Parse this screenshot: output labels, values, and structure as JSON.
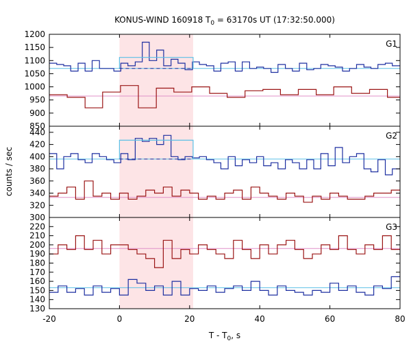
{
  "chart_data": {
    "type": "line",
    "title": "KONUS-WIND 160918 T",
    "title_sub": "0",
    "title_rest": " = 63170s UT (17:32:50.000)",
    "xlabel": "T - T",
    "xlabel_sub": "0",
    "xlabel_rest": ", s",
    "ylabel": "counts / sec",
    "xlim": [
      -20,
      80
    ],
    "xticks": [
      -20,
      0,
      20,
      40,
      60,
      80
    ],
    "highlight_interval": [
      0,
      21
    ],
    "highlight_color": "#fde4e6",
    "panels": [
      {
        "name": "G1",
        "ylim": [
          850,
          1200
        ],
        "yticks": [
          850,
          900,
          950,
          1000,
          1050,
          1100,
          1150,
          1200
        ],
        "series": [
          {
            "color": "#1c2ea0",
            "edges": [
              -20,
              -17.9,
              -15.9,
              -13.9,
              -11.8,
              -9.8,
              -7.8,
              -5.7,
              -3.7,
              -1.6,
              0.4,
              2.4,
              4.5,
              6.5,
              8.5,
              10.6,
              12.6,
              14.7,
              16.7,
              18.7,
              20.8,
              22.8,
              24.8,
              26.9,
              28.9,
              31,
              33,
              35,
              37.1,
              39.1,
              41.1,
              43.2,
              45.2,
              47.3,
              49.3,
              51.3,
              53.4,
              55.4,
              57.4,
              59.5,
              61.5,
              63.6,
              65.6,
              67.6,
              69.7,
              71.7,
              73.7,
              75.8,
              77.8,
              80
            ],
            "values": [
              1090,
              1085,
              1080,
              1060,
              1090,
              1060,
              1100,
              1070,
              1070,
              1060,
              1090,
              1080,
              1095,
              1170,
              1100,
              1140,
              1080,
              1105,
              1090,
              1065,
              1095,
              1085,
              1080,
              1060,
              1090,
              1095,
              1060,
              1095,
              1070,
              1075,
              1070,
              1055,
              1085,
              1070,
              1060,
              1090,
              1065,
              1070,
              1085,
              1080,
              1075,
              1060,
              1070,
              1085,
              1075,
              1070,
              1085,
              1090,
              1080
            ]
          },
          {
            "color": "#9a1414",
            "edges": [
              -20,
              -14.9,
              -9.8,
              -4.8,
              0.3,
              5.4,
              10.5,
              15.5,
              20.6,
              25.7,
              30.7,
              35.8,
              40.9,
              45.9,
              51,
              56.1,
              61.1,
              66.2,
              71.3,
              76.4,
              80
            ],
            "values": [
              970,
              960,
              920,
              980,
              1005,
              920,
              995,
              980,
              1000,
              975,
              960,
              985,
              990,
              970,
              990,
              970,
              1000,
              975,
              990,
              960
            ]
          }
        ],
        "fits": [
          {
            "color": "#5bc0e6",
            "value": 1070
          },
          {
            "color": "#e090c8",
            "value": 965
          }
        ],
        "burst": {
          "color": "#5bc0e6",
          "value": 1112,
          "baseline": 1070,
          "baseline_color": "#1c2ea0"
        }
      },
      {
        "name": "G2",
        "ylim": [
          300,
          450
        ],
        "yticks": [
          300,
          320,
          340,
          360,
          380,
          400,
          420,
          440
        ],
        "series": [
          {
            "color": "#1c2ea0",
            "edges": [
              -20,
              -17.9,
              -15.9,
              -13.9,
              -11.8,
              -9.8,
              -7.8,
              -5.7,
              -3.7,
              -1.6,
              0.4,
              2.4,
              4.5,
              6.5,
              8.5,
              10.6,
              12.6,
              14.7,
              16.7,
              18.7,
              20.8,
              22.8,
              24.8,
              26.9,
              28.9,
              31,
              33,
              35,
              37.1,
              39.1,
              41.1,
              43.2,
              45.2,
              47.3,
              49.3,
              51.3,
              53.4,
              55.4,
              57.4,
              59.5,
              61.5,
              63.6,
              65.6,
              67.6,
              69.7,
              71.7,
              73.7,
              75.8,
              77.8,
              80
            ],
            "values": [
              405,
              380,
              400,
              405,
              395,
              390,
              405,
              400,
              395,
              390,
              405,
              395,
              430,
              425,
              430,
              420,
              435,
              400,
              395,
              400,
              398,
              400,
              395,
              390,
              380,
              400,
              385,
              395,
              390,
              400,
              385,
              390,
              380,
              395,
              390,
              380,
              395,
              380,
              405,
              385,
              415,
              390,
              400,
              405,
              380,
              375,
              395,
              370,
              380
            ]
          },
          {
            "color": "#9a1414",
            "edges": [
              -20,
              -17.5,
              -15,
              -12.5,
              -10,
              -7.5,
              -5,
              -2.5,
              0,
              2.5,
              5,
              7.5,
              10,
              12.5,
              15,
              17.5,
              20,
              22.5,
              25,
              27.5,
              30,
              32.5,
              35,
              37.5,
              40,
              42.5,
              45,
              47.5,
              50,
              52.5,
              55,
              57.5,
              60,
              62.5,
              65,
              67.5,
              70,
              72.5,
              75,
              77.5,
              80
            ],
            "values": [
              335,
              340,
              350,
              330,
              360,
              335,
              340,
              330,
              340,
              330,
              335,
              345,
              340,
              350,
              335,
              345,
              340,
              330,
              335,
              330,
              340,
              345,
              330,
              350,
              340,
              335,
              330,
              340,
              335,
              325,
              335,
              330,
              340,
              335,
              330,
              330,
              335,
              340,
              340,
              345
            ]
          }
        ],
        "fits": [
          {
            "color": "#5bc0e6",
            "value": 396
          },
          {
            "color": "#e090c8",
            "value": 333
          }
        ],
        "burst": {
          "color": "#5bc0e6",
          "value": 427,
          "baseline": 396,
          "baseline_color": "#1c2ea0"
        }
      },
      {
        "name": "G3",
        "ylim": [
          130,
          230
        ],
        "yticks": [
          130,
          140,
          150,
          160,
          170,
          180,
          190,
          200,
          210,
          220
        ],
        "series": [
          {
            "color": "#9a1414",
            "edges": [
              -20,
              -17.5,
              -15,
              -12.5,
              -10,
              -7.5,
              -5,
              -2.5,
              0,
              2.5,
              5,
              7.5,
              10,
              12.5,
              15,
              17.5,
              20,
              22.5,
              25,
              27.5,
              30,
              32.5,
              35,
              37.5,
              40,
              42.5,
              45,
              47.5,
              50,
              52.5,
              55,
              57.5,
              60,
              62.5,
              65,
              67.5,
              70,
              72.5,
              75,
              77.5,
              80
            ],
            "values": [
              190,
              200,
              195,
              210,
              195,
              205,
              190,
              200,
              200,
              195,
              190,
              185,
              175,
              205,
              185,
              195,
              190,
              200,
              195,
              190,
              185,
              205,
              195,
              185,
              200,
              190,
              200,
              205,
              195,
              185,
              190,
              200,
              195,
              210,
              195,
              190,
              200,
              195,
              210,
              195
            ]
          },
          {
            "color": "#1c2ea0",
            "edges": [
              -20,
              -17.5,
              -15,
              -12.5,
              -10,
              -7.5,
              -5,
              -2.5,
              0,
              2.5,
              5,
              7.5,
              10,
              12.5,
              15,
              17.5,
              20,
              22.5,
              25,
              27.5,
              30,
              32.5,
              35,
              37.5,
              40,
              42.5,
              45,
              47.5,
              50,
              52.5,
              55,
              57.5,
              60,
              62.5,
              65,
              67.5,
              70,
              72.5,
              75,
              77.5,
              80
            ],
            "values": [
              148,
              155,
              148,
              152,
              145,
              155,
              148,
              152,
              145,
              162,
              158,
              150,
              155,
              145,
              160,
              145,
              152,
              150,
              155,
              148,
              152,
              155,
              150,
              160,
              150,
              145,
              155,
              150,
              148,
              145,
              150,
              148,
              158,
              150,
              155,
              148,
              145,
              155,
              152,
              165
            ]
          }
        ],
        "fits": [
          {
            "color": "#e090c8",
            "value": 196
          },
          {
            "color": "#5bc0e6",
            "value": 153
          }
        ]
      }
    ]
  }
}
